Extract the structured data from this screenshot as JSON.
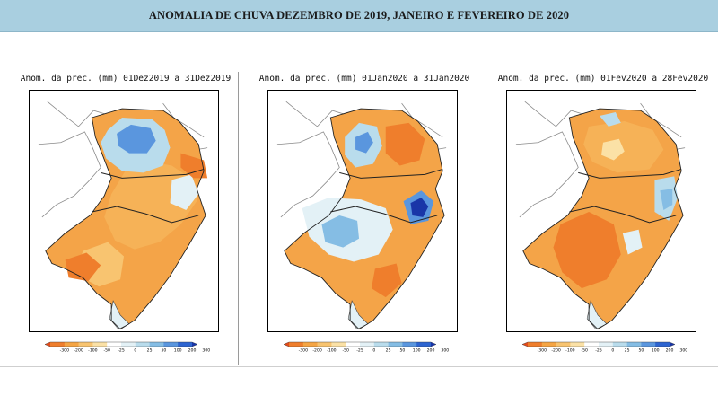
{
  "header": {
    "title": "ANOMALIA DE CHUVA DEZEMBRO DE 2019, JANEIRO E FEVEREIRO DE 2020"
  },
  "colors": {
    "banner": "#a9cfe0",
    "scale": [
      "#e14b1a",
      "#ef7e2c",
      "#f5a544",
      "#f8c470",
      "#fbe1a6",
      "#ffffff",
      "#e3f1f6",
      "#b9dcec",
      "#85bde4",
      "#5a96de",
      "#2d64d0",
      "#1936a8"
    ]
  },
  "colorbar": {
    "ticks": [
      "-300",
      "-200",
      "-100",
      "-50",
      "-25",
      "0",
      "25",
      "50",
      "100",
      "200",
      "300"
    ]
  },
  "panels": [
    {
      "title": "Anom. da prec. (mm) 01Dez2019 a 31Dez2019"
    },
    {
      "title": "Anom. da prec. (mm) 01Jan2020 a 31Jan2020"
    },
    {
      "title": "Anom. da prec. (mm) 01Fev2020 a 28Fev2020"
    }
  ]
}
